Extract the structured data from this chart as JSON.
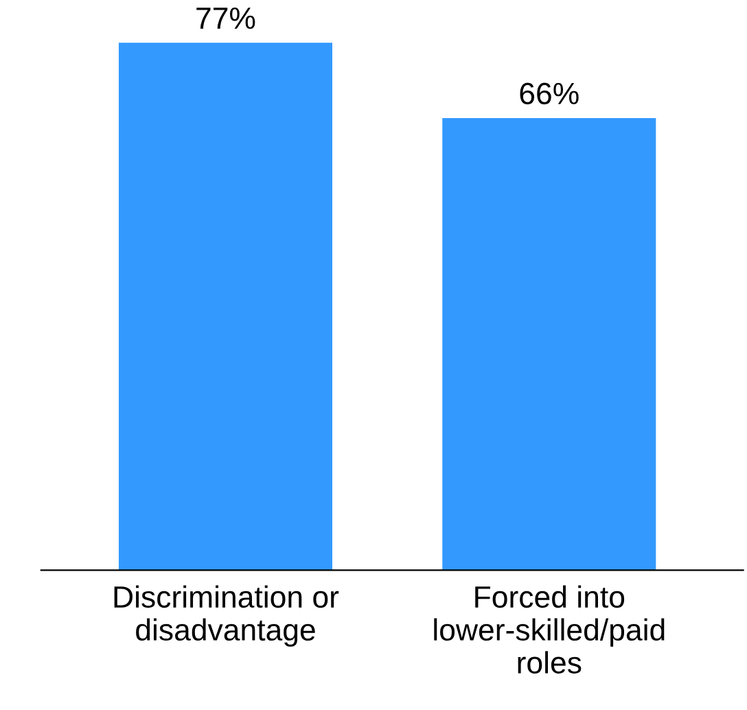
{
  "chart_data": {
    "type": "bar",
    "categories": [
      "Discrimination or\ndisadvantage",
      "Forced into\nlower-skilled/paid\nroles"
    ],
    "values": [
      77,
      66
    ],
    "value_labels": [
      "77%",
      "66%"
    ],
    "color": "#3399ff",
    "grid": false,
    "legend": false
  }
}
